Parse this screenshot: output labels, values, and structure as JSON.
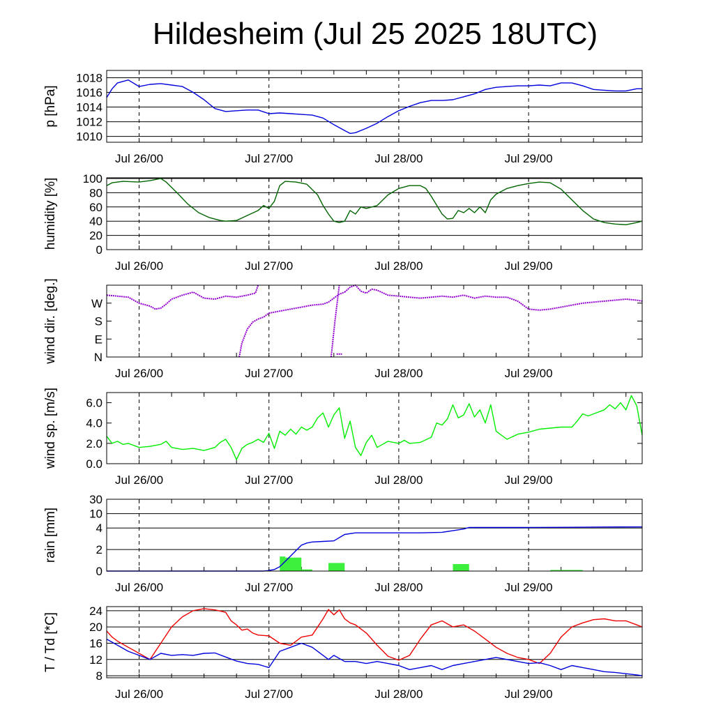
{
  "title": "Hildesheim (Jul 25 2025 18UTC)",
  "colors": {
    "pressure": "#0000dd",
    "humidity": "#006400",
    "wind_dir": "#9400d3",
    "wind_speed": "#00ee00",
    "rain_bar": "#3cef3c",
    "rain_cum": "#0000dd",
    "temperature": "#ee0000",
    "dewpoint": "#0000dd"
  },
  "x_axis": {
    "unit": "hours from Jul 25 18UTC",
    "range": [
      0,
      99
    ],
    "ticks": [
      {
        "x": 6,
        "label": "Jul 26/00"
      },
      {
        "x": 30,
        "label": "Jul 27/00"
      },
      {
        "x": 54,
        "label": "Jul 28/00"
      },
      {
        "x": 78,
        "label": "Jul 29/00"
      }
    ]
  },
  "chart_data": [
    {
      "type": "line",
      "ylabel": "p [hPa]",
      "ylim": [
        1009.2,
        1019
      ],
      "yticks": [
        1010,
        1012,
        1014,
        1016,
        1018
      ],
      "grid": true,
      "series": [
        {
          "color_key": "pressure",
          "x": [
            0,
            1,
            2,
            3,
            4,
            6,
            8,
            10,
            12,
            14,
            16,
            18,
            20,
            22,
            24,
            26,
            28,
            30,
            32,
            34,
            36,
            38,
            40,
            42,
            44,
            45,
            46,
            48,
            50,
            52,
            54,
            56,
            58,
            60,
            62,
            64,
            66,
            68,
            70,
            72,
            74,
            76,
            78,
            80,
            82,
            84,
            86,
            88,
            90,
            92,
            94,
            96,
            98,
            99
          ],
          "y": [
            1015.3,
            1016.5,
            1017.3,
            1017.5,
            1017.7,
            1016.8,
            1017.1,
            1017.2,
            1017.0,
            1016.8,
            1016.0,
            1015.0,
            1013.8,
            1013.4,
            1013.5,
            1013.6,
            1013.6,
            1013.1,
            1013.2,
            1013.1,
            1013.0,
            1012.9,
            1012.5,
            1011.6,
            1010.8,
            1010.4,
            1010.5,
            1011.1,
            1011.8,
            1012.7,
            1013.5,
            1014.1,
            1014.6,
            1014.9,
            1014.9,
            1015.0,
            1015.4,
            1015.8,
            1016.4,
            1016.7,
            1016.8,
            1016.9,
            1016.9,
            1017.0,
            1016.9,
            1017.3,
            1017.3,
            1016.9,
            1016.4,
            1016.3,
            1016.2,
            1016.2,
            1016.5,
            1016.5
          ]
        }
      ]
    },
    {
      "type": "line",
      "ylabel": "humidity [%]",
      "ylim": [
        0,
        101
      ],
      "yticks": [
        0,
        20,
        40,
        60,
        80,
        100
      ],
      "grid": true,
      "series": [
        {
          "color_key": "humidity",
          "x": [
            0,
            1,
            3,
            6,
            8,
            10,
            11,
            13,
            15,
            17,
            19,
            21,
            22,
            24,
            26,
            28,
            29,
            30,
            31,
            32,
            33,
            35,
            37,
            39,
            40,
            41,
            42,
            43,
            44,
            45,
            46,
            47,
            48,
            50,
            52,
            54,
            56,
            58,
            59,
            60,
            62,
            63,
            64,
            65,
            66,
            67,
            68,
            69,
            70,
            71,
            72,
            74,
            76,
            78,
            80,
            82,
            84,
            86,
            88,
            90,
            92,
            94,
            96,
            98,
            99
          ],
          "y": [
            90,
            94,
            96,
            95,
            97,
            100,
            95,
            80,
            64,
            52,
            45,
            41,
            40,
            41,
            48,
            55,
            62,
            58,
            68,
            90,
            96,
            95,
            92,
            77,
            62,
            50,
            40,
            38,
            40,
            55,
            50,
            60,
            58,
            62,
            77,
            86,
            90,
            90,
            86,
            75,
            50,
            43,
            44,
            55,
            52,
            58,
            52,
            60,
            52,
            70,
            78,
            86,
            90,
            93,
            95,
            94,
            85,
            70,
            55,
            43,
            38,
            36,
            35,
            38,
            40
          ]
        }
      ]
    },
    {
      "type": "scatter",
      "ylabel": "wind dir. [deg.]",
      "ylim": [
        0,
        360
      ],
      "yticks": [
        0,
        90,
        180,
        270
      ],
      "yticklabels": [
        "N",
        "E",
        "S",
        "W"
      ],
      "grid": false,
      "series": [
        {
          "color_key": "wind_dir",
          "segments": [
            {
              "x": [
                0,
                2,
                4,
                5,
                6,
                8,
                9,
                10,
                11,
                12,
                14,
                16,
                18,
                20,
                22,
                24,
                26,
                27.5,
                28
              ],
              "y": [
                310,
                305,
                300,
                285,
                270,
                255,
                240,
                245,
                265,
                290,
                310,
                325,
                295,
                290,
                305,
                300,
                310,
                320,
                360
              ]
            },
            {
              "x": [
                24.5,
                25,
                26,
                27,
                28,
                29,
                30,
                32,
                34,
                36,
                38,
                40,
                41,
                42,
                43,
                44
              ],
              "y": [
                0,
                70,
                140,
                175,
                190,
                200,
                220,
                230,
                240,
                250,
                260,
                265,
                275,
                295,
                315,
                325
              ]
            },
            {
              "x": [
                44,
                45,
                46,
                47,
                48,
                49,
                50,
                52,
                54,
                56,
                58,
                60,
                62,
                64,
                66,
                68,
                70,
                72,
                74,
                76,
                78,
                80,
                82,
                84,
                86,
                88,
                90,
                92,
                94,
                96,
                98,
                99
              ],
              "y": [
                325,
                350,
                360,
                330,
                320,
                340,
                335,
                310,
                305,
                300,
                295,
                300,
                305,
                300,
                310,
                295,
                305,
                300,
                300,
                280,
                240,
                235,
                240,
                250,
                260,
                270,
                275,
                280,
                285,
                290,
                285,
                280
              ]
            },
            {
              "x": [
                41.5,
                42.2,
                43
              ],
              "y": [
                0,
                180,
                360
              ]
            },
            {
              "x": [
                42.5,
                43.5
              ],
              "y": [
                15,
                15
              ]
            }
          ]
        }
      ]
    },
    {
      "type": "line",
      "ylabel": "wind sp. [m/s]",
      "ylim": [
        0,
        7
      ],
      "yticks": [
        0,
        2,
        4,
        6
      ],
      "yticklabels": [
        "0.0",
        "2.0",
        "4.0",
        "6.0"
      ],
      "grid": false,
      "series": [
        {
          "color_key": "wind_speed",
          "x": [
            0,
            1,
            2,
            3,
            4,
            6,
            8,
            10,
            11,
            12,
            14,
            16,
            18,
            20,
            21,
            22,
            23,
            24,
            25,
            26,
            27,
            28,
            29,
            30,
            31,
            32,
            33,
            34,
            35,
            36,
            37,
            38,
            39,
            40,
            41,
            42,
            43,
            44,
            45,
            46,
            47,
            48,
            49,
            50,
            52,
            54,
            55,
            56,
            58,
            60,
            61,
            62,
            63,
            64,
            65,
            66,
            67,
            68,
            69,
            70,
            71,
            72,
            74,
            76,
            78,
            80,
            82,
            84,
            86,
            87,
            88,
            89,
            90,
            91,
            92,
            93,
            94,
            95,
            96,
            97,
            98,
            99
          ],
          "y": [
            2.7,
            2.0,
            2.2,
            1.9,
            2.0,
            1.6,
            1.7,
            1.9,
            2.2,
            1.6,
            1.4,
            1.5,
            1.3,
            1.6,
            2.1,
            2.4,
            1.6,
            0.4,
            1.5,
            1.9,
            2.1,
            2.4,
            2.1,
            3.0,
            1.5,
            3.2,
            2.8,
            3.4,
            2.9,
            3.6,
            3.3,
            3.6,
            4.5,
            5.0,
            3.6,
            4.8,
            5.5,
            2.5,
            4.2,
            1.6,
            0.8,
            2.1,
            2.8,
            1.6,
            2.2,
            2.0,
            2.3,
            2.0,
            2.1,
            2.6,
            4.0,
            3.8,
            4.4,
            5.8,
            4.5,
            4.8,
            5.9,
            4.6,
            5.3,
            4.0,
            5.8,
            3.2,
            2.4,
            2.9,
            3.1,
            3.4,
            3.5,
            3.6,
            3.6,
            4.2,
            4.9,
            4.7,
            4.9,
            5.1,
            5.3,
            5.8,
            5.4,
            6.0,
            5.3,
            6.7,
            5.7,
            2.8
          ]
        }
      ]
    },
    {
      "type": "bar",
      "ylabel": "rain [mm]",
      "ylim": [
        0,
        30
      ],
      "yticks": [
        0,
        2,
        4,
        10,
        30
      ],
      "grid": true,
      "bars": {
        "color_key": "rain_bar",
        "x_start": [
          32,
          33,
          36,
          41,
          64,
          82
        ],
        "x_end": [
          33,
          36,
          38,
          44,
          67,
          88
        ],
        "values": [
          1.35,
          1.25,
          0.15,
          0.75,
          0.65,
          0.1
        ]
      },
      "series": [
        {
          "color_key": "rain_cum",
          "x": [
            0,
            29,
            30,
            31,
            32,
            33,
            34,
            35,
            36,
            37,
            38,
            40,
            42,
            44,
            46,
            50,
            54,
            58,
            62,
            64,
            66,
            67,
            70,
            78,
            86,
            92,
            99
          ],
          "y": [
            0,
            0,
            0.05,
            0.15,
            0.4,
            0.9,
            1.4,
            1.9,
            2.4,
            2.6,
            2.7,
            2.75,
            2.8,
            3.4,
            3.55,
            3.55,
            3.55,
            3.55,
            3.6,
            3.75,
            3.9,
            4.2,
            4.2,
            4.2,
            4.3,
            4.4,
            4.45
          ]
        }
      ]
    },
    {
      "type": "line",
      "ylabel": "T / Td [*C]",
      "ylim": [
        7.5,
        25
      ],
      "yticks": [
        8,
        12,
        16,
        20,
        24
      ],
      "grid": true,
      "series": [
        {
          "color_key": "temperature",
          "x": [
            0,
            1,
            2,
            4,
            6,
            8,
            10,
            12,
            14,
            16,
            18,
            20,
            22,
            23,
            24,
            25,
            26,
            27,
            28,
            30,
            32,
            34,
            36,
            38,
            40,
            41,
            42,
            43,
            44,
            45,
            46,
            48,
            50,
            52,
            54,
            56,
            58,
            60,
            62,
            64,
            66,
            68,
            70,
            72,
            74,
            76,
            78,
            80,
            82,
            84,
            86,
            88,
            90,
            92,
            94,
            96,
            98,
            99
          ],
          "y": [
            19.0,
            17.5,
            16.5,
            15.0,
            13.5,
            12.0,
            16.0,
            20.0,
            22.5,
            24.0,
            24.5,
            24.2,
            23.6,
            21.5,
            20.5,
            19.2,
            19.5,
            18.5,
            18.0,
            17.8,
            16.0,
            15.5,
            17.5,
            18.0,
            22.0,
            24.3,
            23.0,
            24.2,
            22.0,
            21.0,
            20.5,
            18.5,
            15.5,
            12.8,
            11.8,
            13.0,
            17.0,
            20.5,
            21.5,
            20.0,
            20.5,
            19.0,
            17.0,
            15.0,
            13.5,
            12.5,
            12.0,
            11.0,
            13.5,
            17.5,
            20.0,
            21.0,
            21.8,
            22.0,
            21.5,
            21.5,
            20.5,
            20.0
          ]
        },
        {
          "color_key": "dewpoint",
          "x": [
            0,
            2,
            4,
            6,
            8,
            10,
            12,
            14,
            16,
            18,
            20,
            22,
            24,
            26,
            28,
            30,
            32,
            34,
            36,
            38,
            40,
            41,
            42,
            44,
            46,
            48,
            50,
            52,
            54,
            56,
            58,
            60,
            62,
            64,
            66,
            68,
            70,
            72,
            74,
            76,
            78,
            80,
            82,
            84,
            86,
            88,
            90,
            92,
            94,
            96,
            98,
            99
          ],
          "y": [
            17.0,
            15.5,
            14.0,
            13.0,
            12.0,
            13.5,
            13.0,
            13.2,
            13.0,
            13.5,
            13.6,
            12.6,
            11.6,
            11.0,
            10.8,
            10.0,
            14.0,
            15.0,
            16.0,
            15.0,
            13.0,
            12.0,
            13.0,
            11.5,
            11.5,
            11.0,
            11.5,
            11.0,
            10.5,
            9.5,
            10.0,
            10.5,
            9.5,
            10.5,
            11.0,
            11.5,
            12.0,
            12.5,
            12.0,
            11.5,
            11.0,
            11.2,
            10.5,
            9.5,
            10.5,
            10.0,
            9.5,
            9.0,
            8.8,
            8.5,
            8.2,
            8.0
          ]
        }
      ]
    }
  ]
}
